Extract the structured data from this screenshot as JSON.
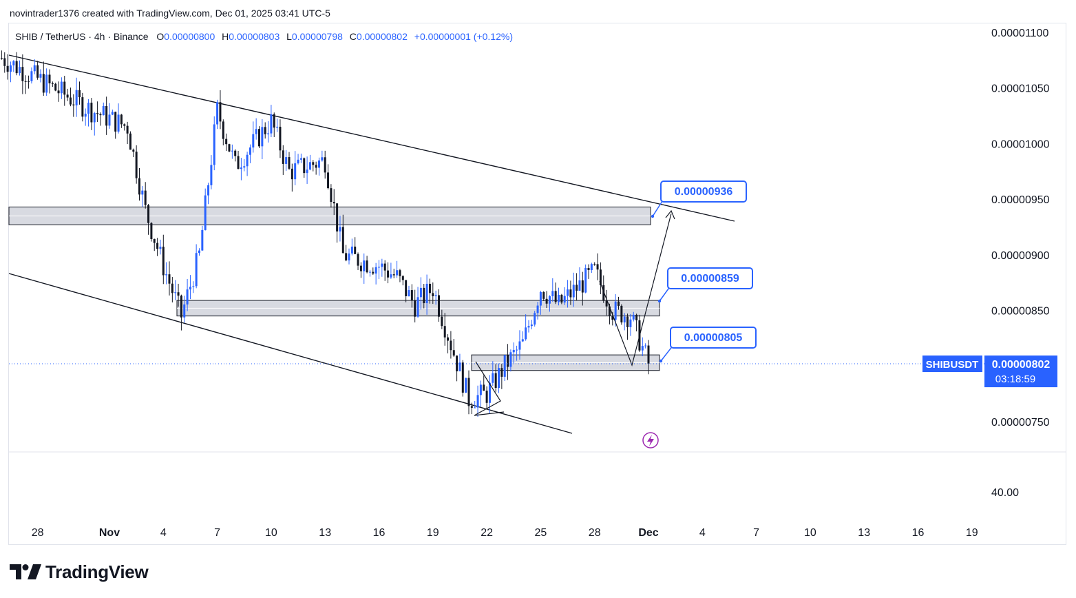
{
  "credit": "novintrader1376 created with TradingView.com, Dec 01, 2025 03:41 UTC-5",
  "legend": {
    "symbol": "SHIB / TetherUS · 4h · Binance",
    "open_label": "O",
    "open": "0.00000800",
    "high_label": "H",
    "high": "0.00000803",
    "low_label": "L",
    "low": "0.00000798",
    "close_label": "C",
    "close": "0.00000802",
    "change": "+0.00000001 (+0.12%)"
  },
  "brand": "TradingView",
  "price_tag": {
    "symbol": "SHIBUSDT",
    "price": "0.00000802",
    "countdown": "03:18:59"
  },
  "colors": {
    "up": "#2962ff",
    "down": "#131722",
    "accent": "#2962ff",
    "zone_fill": "#d1d4dc",
    "zone_stroke": "#131722",
    "signal": "#9c27b0"
  },
  "chart_data": {
    "type": "candlestick",
    "y_ticks": [
      "0.00001100",
      "0.00001050",
      "0.00001000",
      "0.00000950",
      "0.00000900",
      "0.00000850",
      "0.00000750"
    ],
    "oscillator_tick": "40.00",
    "x_ticks": [
      "28",
      "Nov",
      "4",
      "7",
      "10",
      "13",
      "16",
      "19",
      "22",
      "25",
      "28",
      "Dec",
      "4",
      "7",
      "10",
      "13",
      "16",
      "19"
    ],
    "last_price": 8.02e-06,
    "callouts": [
      {
        "label": "0.00000936",
        "value": 9.36e-06
      },
      {
        "label": "0.00000859",
        "value": 8.59e-06
      },
      {
        "label": "0.00000805",
        "value": 8.05e-06
      }
    ],
    "zones": [
      {
        "low": 9.27e-06,
        "high": 9.43e-06
      },
      {
        "low": 8.45e-06,
        "high": 8.59e-06
      },
      {
        "low": 7.96e-06,
        "high": 8.1e-06
      }
    ],
    "key_points": [
      {
        "date": "Oct 26",
        "price": 1.077e-05
      },
      {
        "date": "Oct 31",
        "price": 1.03e-05
      },
      {
        "date": "Nov 2",
        "price": 1.015e-05
      },
      {
        "date": "Nov 3",
        "price": 9.4e-06
      },
      {
        "date": "Nov 4",
        "price": 8.9e-06
      },
      {
        "date": "Nov 5",
        "price": 8.45e-06
      },
      {
        "date": "Nov 6",
        "price": 9e-06
      },
      {
        "date": "Nov 7",
        "price": 1.03e-05
      },
      {
        "date": "Nov 8",
        "price": 9.8e-06
      },
      {
        "date": "Nov 10",
        "price": 1.02e-05
      },
      {
        "date": "Nov 11",
        "price": 9.75e-06
      },
      {
        "date": "Nov 13",
        "price": 9.85e-06
      },
      {
        "date": "Nov 14",
        "price": 9e-06
      },
      {
        "date": "Nov 16",
        "price": 8.9e-06
      },
      {
        "date": "Nov 17",
        "price": 8.8e-06
      },
      {
        "date": "Nov 18",
        "price": 8.55e-06
      },
      {
        "date": "Nov 19",
        "price": 8.7e-06
      },
      {
        "date": "Nov 20",
        "price": 8.2e-06
      },
      {
        "date": "Nov 21",
        "price": 7.7e-06
      },
      {
        "date": "Nov 22",
        "price": 7.75e-06
      },
      {
        "date": "Nov 23",
        "price": 8e-06
      },
      {
        "date": "Nov 24",
        "price": 8.2e-06
      },
      {
        "date": "Nov 25",
        "price": 8.7e-06
      },
      {
        "date": "Nov 26",
        "price": 8.55e-06
      },
      {
        "date": "Nov 27",
        "price": 8.7e-06
      },
      {
        "date": "Nov 28",
        "price": 8.85e-06
      },
      {
        "date": "Nov 29",
        "price": 8.5e-06
      },
      {
        "date": "Nov 30",
        "price": 8.45e-06
      },
      {
        "date": "Dec 1",
        "price": 8.02e-06
      }
    ]
  }
}
